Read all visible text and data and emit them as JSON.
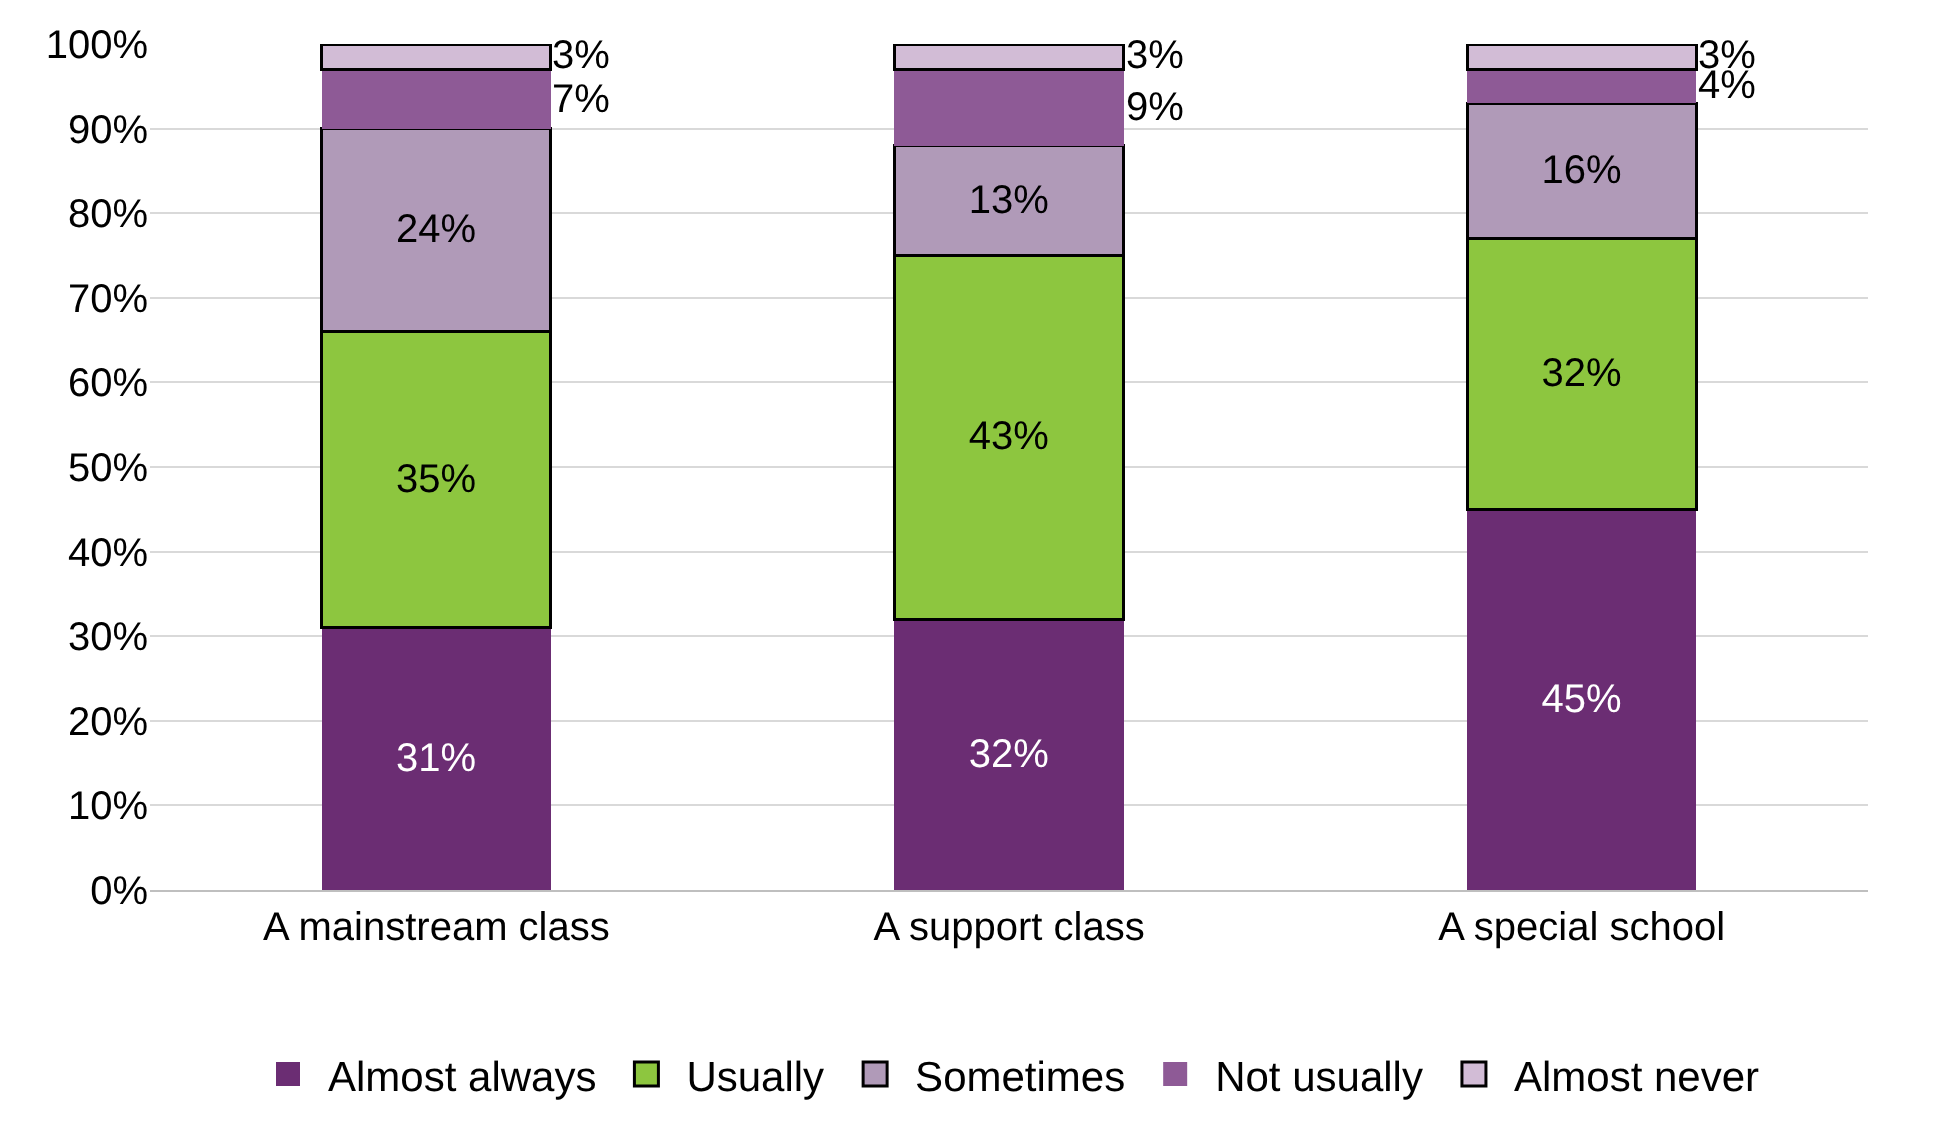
{
  "chart_data": {
    "type": "bar",
    "stacked": true,
    "categories": [
      "A mainstream class",
      "A support class",
      "A special school"
    ],
    "series": [
      {
        "name": "Almost always",
        "color": "#6b2d73",
        "values": [
          31,
          32,
          45
        ],
        "value_labels": [
          "31%",
          "32%",
          "45%"
        ]
      },
      {
        "name": "Usually",
        "color": "#8dc63f",
        "values": [
          35,
          43,
          32
        ],
        "value_labels": [
          "35%",
          "43%",
          "32%"
        ]
      },
      {
        "name": "Sometimes",
        "color": "#b09ab8",
        "values": [
          24,
          13,
          16
        ],
        "value_labels": [
          "24%",
          "13%",
          "16%"
        ]
      },
      {
        "name": "Not usually",
        "color": "#8e5a96",
        "values": [
          7,
          9,
          4
        ],
        "value_labels": [
          "7%",
          "9%",
          "4%"
        ]
      },
      {
        "name": "Almost never",
        "color": "#d2bcd6",
        "values": [
          3,
          3,
          3
        ],
        "value_labels": [
          "3%",
          "3%",
          "3%"
        ]
      }
    ],
    "ylim": [
      0,
      100
    ],
    "yticks": [
      {
        "value": 0,
        "label": "0%"
      },
      {
        "value": 10,
        "label": "10%"
      },
      {
        "value": 20,
        "label": "20%"
      },
      {
        "value": 30,
        "label": "30%"
      },
      {
        "value": 40,
        "label": "40%"
      },
      {
        "value": 50,
        "label": "50%"
      },
      {
        "value": 60,
        "label": "60%"
      },
      {
        "value": 70,
        "label": "70%"
      },
      {
        "value": 80,
        "label": "80%"
      },
      {
        "value": 90,
        "label": "90%"
      },
      {
        "value": 100,
        "label": "100%"
      }
    ],
    "grid": "y",
    "legend": "bottom"
  }
}
